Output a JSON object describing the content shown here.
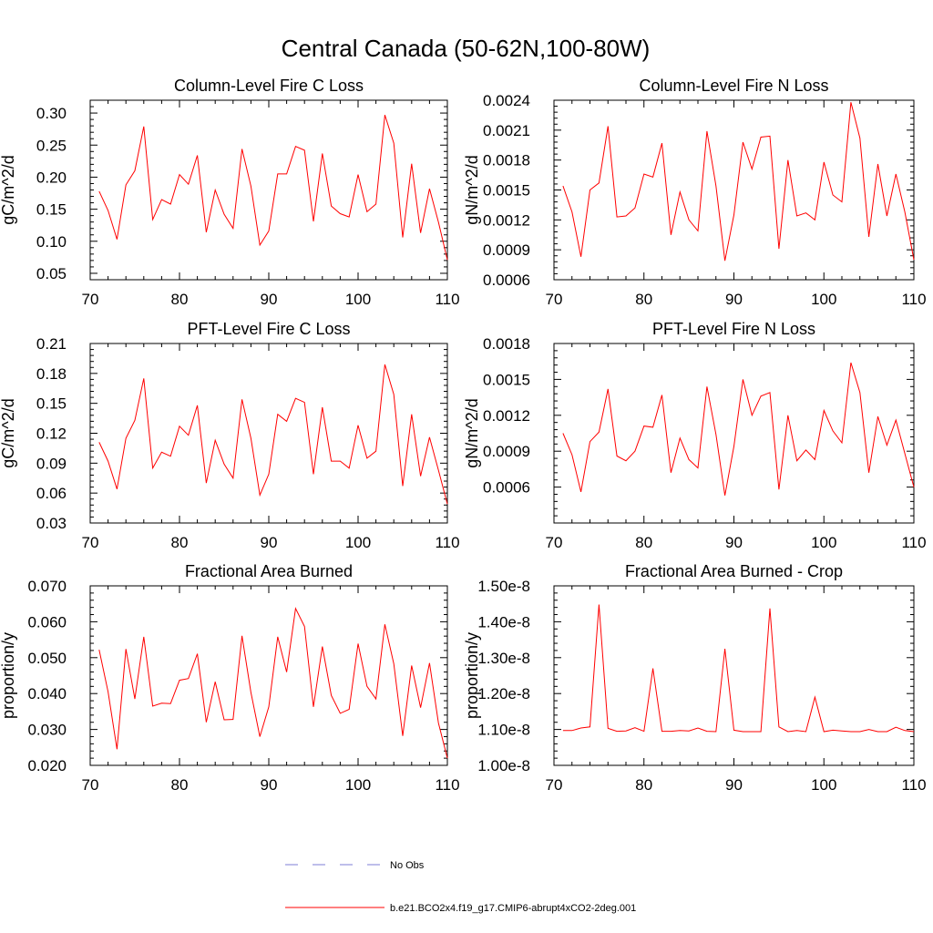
{
  "title": "Central Canada (50-62N,100-80W)",
  "chart_data": [
    {
      "type": "line",
      "title": "Column-Level Fire C Loss",
      "xlabel": "",
      "ylabel": "gC/m^2/d",
      "xlim": [
        70,
        110
      ],
      "ylim": [
        0.04,
        0.32
      ],
      "xticks": [
        70,
        80,
        90,
        100,
        110
      ],
      "yticks": [
        0.05,
        0.1,
        0.15,
        0.2,
        0.25,
        0.3
      ],
      "ytick_labels": [
        "0.05",
        "0.10",
        "0.15",
        "0.20",
        "0.25",
        "0.30"
      ],
      "series": [
        {
          "name": "b.e21.BCO2x4.f19_g17.CMIP6-abrupt4xCO2-2deg.001",
          "x": [
            71,
            72,
            73,
            74,
            75,
            76,
            77,
            78,
            79,
            80,
            81,
            82,
            83,
            84,
            85,
            86,
            87,
            88,
            89,
            90,
            91,
            92,
            93,
            94,
            95,
            96,
            97,
            98,
            99,
            100,
            101,
            102,
            103,
            104,
            105,
            106,
            107,
            108,
            109,
            110
          ],
          "values": [
            0.178,
            0.148,
            0.103,
            0.188,
            0.21,
            0.279,
            0.134,
            0.165,
            0.158,
            0.204,
            0.189,
            0.234,
            0.114,
            0.18,
            0.142,
            0.12,
            0.244,
            0.186,
            0.094,
            0.116,
            0.205,
            0.205,
            0.248,
            0.242,
            0.131,
            0.237,
            0.155,
            0.143,
            0.138,
            0.204,
            0.146,
            0.158,
            0.297,
            0.253,
            0.106,
            0.221,
            0.113,
            0.182,
            0.13,
            0.071
          ]
        }
      ]
    },
    {
      "type": "line",
      "title": "Column-Level Fire N Loss",
      "xlabel": "",
      "ylabel": "gN/m^2/d",
      "xlim": [
        70,
        110
      ],
      "ylim": [
        0.0006,
        0.0024
      ],
      "xticks": [
        70,
        80,
        90,
        100,
        110
      ],
      "yticks": [
        0.0006,
        0.0009,
        0.0012,
        0.0015,
        0.0018,
        0.0021,
        0.0024
      ],
      "ytick_labels": [
        "0.0006",
        "0.0009",
        "0.0012",
        "0.0015",
        "0.0018",
        "0.0021",
        "0.0024"
      ],
      "series": [
        {
          "name": "b.e21.BCO2x4.f19_g17.CMIP6-abrupt4xCO2-2deg.001",
          "x": [
            71,
            72,
            73,
            74,
            75,
            76,
            77,
            78,
            79,
            80,
            81,
            82,
            83,
            84,
            85,
            86,
            87,
            88,
            89,
            90,
            91,
            92,
            93,
            94,
            95,
            96,
            97,
            98,
            99,
            100,
            101,
            102,
            103,
            104,
            105,
            106,
            107,
            108,
            109,
            110
          ],
          "values": [
            0.00154,
            0.00128,
            0.00083,
            0.0015,
            0.00157,
            0.00214,
            0.00123,
            0.00124,
            0.00132,
            0.00166,
            0.00163,
            0.00197,
            0.00105,
            0.00148,
            0.0012,
            0.00109,
            0.00209,
            0.00154,
            0.00079,
            0.00125,
            0.00198,
            0.00171,
            0.00203,
            0.00204,
            0.00091,
            0.0018,
            0.00124,
            0.00127,
            0.0012,
            0.00178,
            0.00145,
            0.00138,
            0.00238,
            0.00202,
            0.00103,
            0.00176,
            0.00124,
            0.00166,
            0.00128,
            0.0008
          ]
        }
      ]
    },
    {
      "type": "line",
      "title": "PFT-Level Fire C Loss",
      "xlabel": "",
      "ylabel": "gC/m^2/d",
      "xlim": [
        70,
        110
      ],
      "ylim": [
        0.03,
        0.21
      ],
      "xticks": [
        70,
        80,
        90,
        100,
        110
      ],
      "yticks": [
        0.03,
        0.06,
        0.09,
        0.12,
        0.15,
        0.18,
        0.21
      ],
      "ytick_labels": [
        "0.03",
        "0.06",
        "0.09",
        "0.12",
        "0.15",
        "0.18",
        "0.21"
      ],
      "series": [
        {
          "name": "b.e21.BCO2x4.f19_g17.CMIP6-abrupt4xCO2-2deg.001",
          "x": [
            71,
            72,
            73,
            74,
            75,
            76,
            77,
            78,
            79,
            80,
            81,
            82,
            83,
            84,
            85,
            86,
            87,
            88,
            89,
            90,
            91,
            92,
            93,
            94,
            95,
            96,
            97,
            98,
            99,
            100,
            101,
            102,
            103,
            104,
            105,
            106,
            107,
            108,
            109,
            110
          ],
          "values": [
            0.111,
            0.092,
            0.064,
            0.115,
            0.133,
            0.175,
            0.085,
            0.101,
            0.097,
            0.127,
            0.118,
            0.148,
            0.07,
            0.113,
            0.089,
            0.075,
            0.154,
            0.115,
            0.058,
            0.079,
            0.139,
            0.132,
            0.155,
            0.151,
            0.079,
            0.146,
            0.092,
            0.092,
            0.085,
            0.128,
            0.095,
            0.102,
            0.189,
            0.159,
            0.067,
            0.139,
            0.077,
            0.116,
            0.083,
            0.049
          ]
        }
      ]
    },
    {
      "type": "line",
      "title": "PFT-Level Fire N Loss",
      "xlabel": "",
      "ylabel": "gN/m^2/d",
      "xlim": [
        70,
        110
      ],
      "ylim": [
        0.0003,
        0.0018
      ],
      "xticks": [
        70,
        80,
        90,
        100,
        110
      ],
      "yticks": [
        0.0006,
        0.0009,
        0.0012,
        0.0015,
        0.0018
      ],
      "ytick_labels": [
        "0.0006",
        "0.0009",
        "0.0012",
        "0.0015",
        "0.0018"
      ],
      "series": [
        {
          "name": "b.e21.BCO2x4.f19_g17.CMIP6-abrupt4xCO2-2deg.001",
          "x": [
            71,
            72,
            73,
            74,
            75,
            76,
            77,
            78,
            79,
            80,
            81,
            82,
            83,
            84,
            85,
            86,
            87,
            88,
            89,
            90,
            91,
            92,
            93,
            94,
            95,
            96,
            97,
            98,
            99,
            100,
            101,
            102,
            103,
            104,
            105,
            106,
            107,
            108,
            109,
            110
          ],
          "values": [
            0.00105,
            0.00087,
            0.00056,
            0.00098,
            0.00106,
            0.00142,
            0.00086,
            0.00082,
            0.0009,
            0.00111,
            0.0011,
            0.00137,
            0.00072,
            0.00101,
            0.00083,
            0.00076,
            0.00144,
            0.00104,
            0.00053,
            0.00094,
            0.0015,
            0.0012,
            0.00136,
            0.00139,
            0.00058,
            0.0012,
            0.00082,
            0.00091,
            0.00083,
            0.00124,
            0.00107,
            0.00097,
            0.00164,
            0.00139,
            0.00072,
            0.00119,
            0.00095,
            0.00116,
            0.00088,
            0.0006
          ]
        }
      ]
    },
    {
      "type": "line",
      "title": "Fractional Area Burned",
      "xlabel": "",
      "ylabel": "proportion/y",
      "xlim": [
        70,
        110
      ],
      "ylim": [
        0.02,
        0.07
      ],
      "xticks": [
        70,
        80,
        90,
        100,
        110
      ],
      "yticks": [
        0.02,
        0.03,
        0.04,
        0.05,
        0.06,
        0.07
      ],
      "ytick_labels": [
        "0.020",
        "0.030",
        "0.040",
        "0.050",
        "0.060",
        "0.070"
      ],
      "series": [
        {
          "name": "b.e21.BCO2x4.f19_g17.CMIP6-abrupt4xCO2-2deg.001",
          "x": [
            71,
            72,
            73,
            74,
            75,
            76,
            77,
            78,
            79,
            80,
            81,
            82,
            83,
            84,
            85,
            86,
            87,
            88,
            89,
            90,
            91,
            92,
            93,
            94,
            95,
            96,
            97,
            98,
            99,
            100,
            101,
            102,
            103,
            104,
            105,
            106,
            107,
            108,
            109,
            110
          ],
          "values": [
            0.0522,
            0.0405,
            0.0245,
            0.0524,
            0.0385,
            0.0558,
            0.0365,
            0.0373,
            0.0372,
            0.0437,
            0.0442,
            0.0511,
            0.032,
            0.0433,
            0.0327,
            0.0328,
            0.0561,
            0.0403,
            0.028,
            0.0363,
            0.0558,
            0.046,
            0.0637,
            0.0587,
            0.0363,
            0.0531,
            0.0395,
            0.0345,
            0.0356,
            0.0539,
            0.042,
            0.0385,
            0.0593,
            0.0483,
            0.0282,
            0.0478,
            0.0361,
            0.0485,
            0.0318,
            0.022
          ]
        }
      ]
    },
    {
      "type": "line",
      "title": "Fractional Area Burned - Crop",
      "xlabel": "",
      "ylabel": "proportion/y",
      "xlim": [
        70,
        110
      ],
      "ylim": [
        1e-08,
        1.5e-08
      ],
      "xticks": [
        70,
        80,
        90,
        100,
        110
      ],
      "yticks": [
        1e-08,
        1.1e-08,
        1.2e-08,
        1.3e-08,
        1.4e-08,
        1.5e-08
      ],
      "ytick_labels": [
        "1.00e-8",
        "1.10e-8",
        "1.20e-8",
        "1.30e-8",
        "1.40e-8",
        "1.50e-8"
      ],
      "series": [
        {
          "name": "b.e21.BCO2x4.f19_g17.CMIP6-abrupt4xCO2-2deg.001",
          "x": [
            71,
            72,
            73,
            74,
            75,
            76,
            77,
            78,
            79,
            80,
            81,
            82,
            83,
            84,
            85,
            86,
            87,
            88,
            89,
            90,
            91,
            92,
            93,
            94,
            95,
            96,
            97,
            98,
            99,
            100,
            101,
            102,
            103,
            104,
            105,
            106,
            107,
            108,
            109,
            110
          ],
          "values": [
            1.097e-08,
            1.097e-08,
            1.104e-08,
            1.107e-08,
            1.448e-08,
            1.103e-08,
            1.095e-08,
            1.096e-08,
            1.105e-08,
            1.095e-08,
            1.27e-08,
            1.095e-08,
            1.095e-08,
            1.097e-08,
            1.096e-08,
            1.104e-08,
            1.095e-08,
            1.094e-08,
            1.325e-08,
            1.098e-08,
            1.094e-08,
            1.094e-08,
            1.094e-08,
            1.437e-08,
            1.107e-08,
            1.094e-08,
            1.097e-08,
            1.094e-08,
            1.19e-08,
            1.094e-08,
            1.098e-08,
            1.096e-08,
            1.094e-08,
            1.094e-08,
            1.1e-08,
            1.094e-08,
            1.094e-08,
            1.106e-08,
            1.097e-08,
            1.094e-08
          ]
        }
      ]
    }
  ],
  "legend": {
    "entries": [
      {
        "label": "No Obs",
        "color": "#7d7dd4",
        "style": "dashed"
      },
      {
        "label": "b.e21.BCO2x4.f19_g17.CMIP6-abrupt4xCO2-2deg.001",
        "color": "#ff0000",
        "style": "solid"
      }
    ]
  },
  "colors": {
    "series": "#ff0000",
    "axis": "#000000"
  }
}
